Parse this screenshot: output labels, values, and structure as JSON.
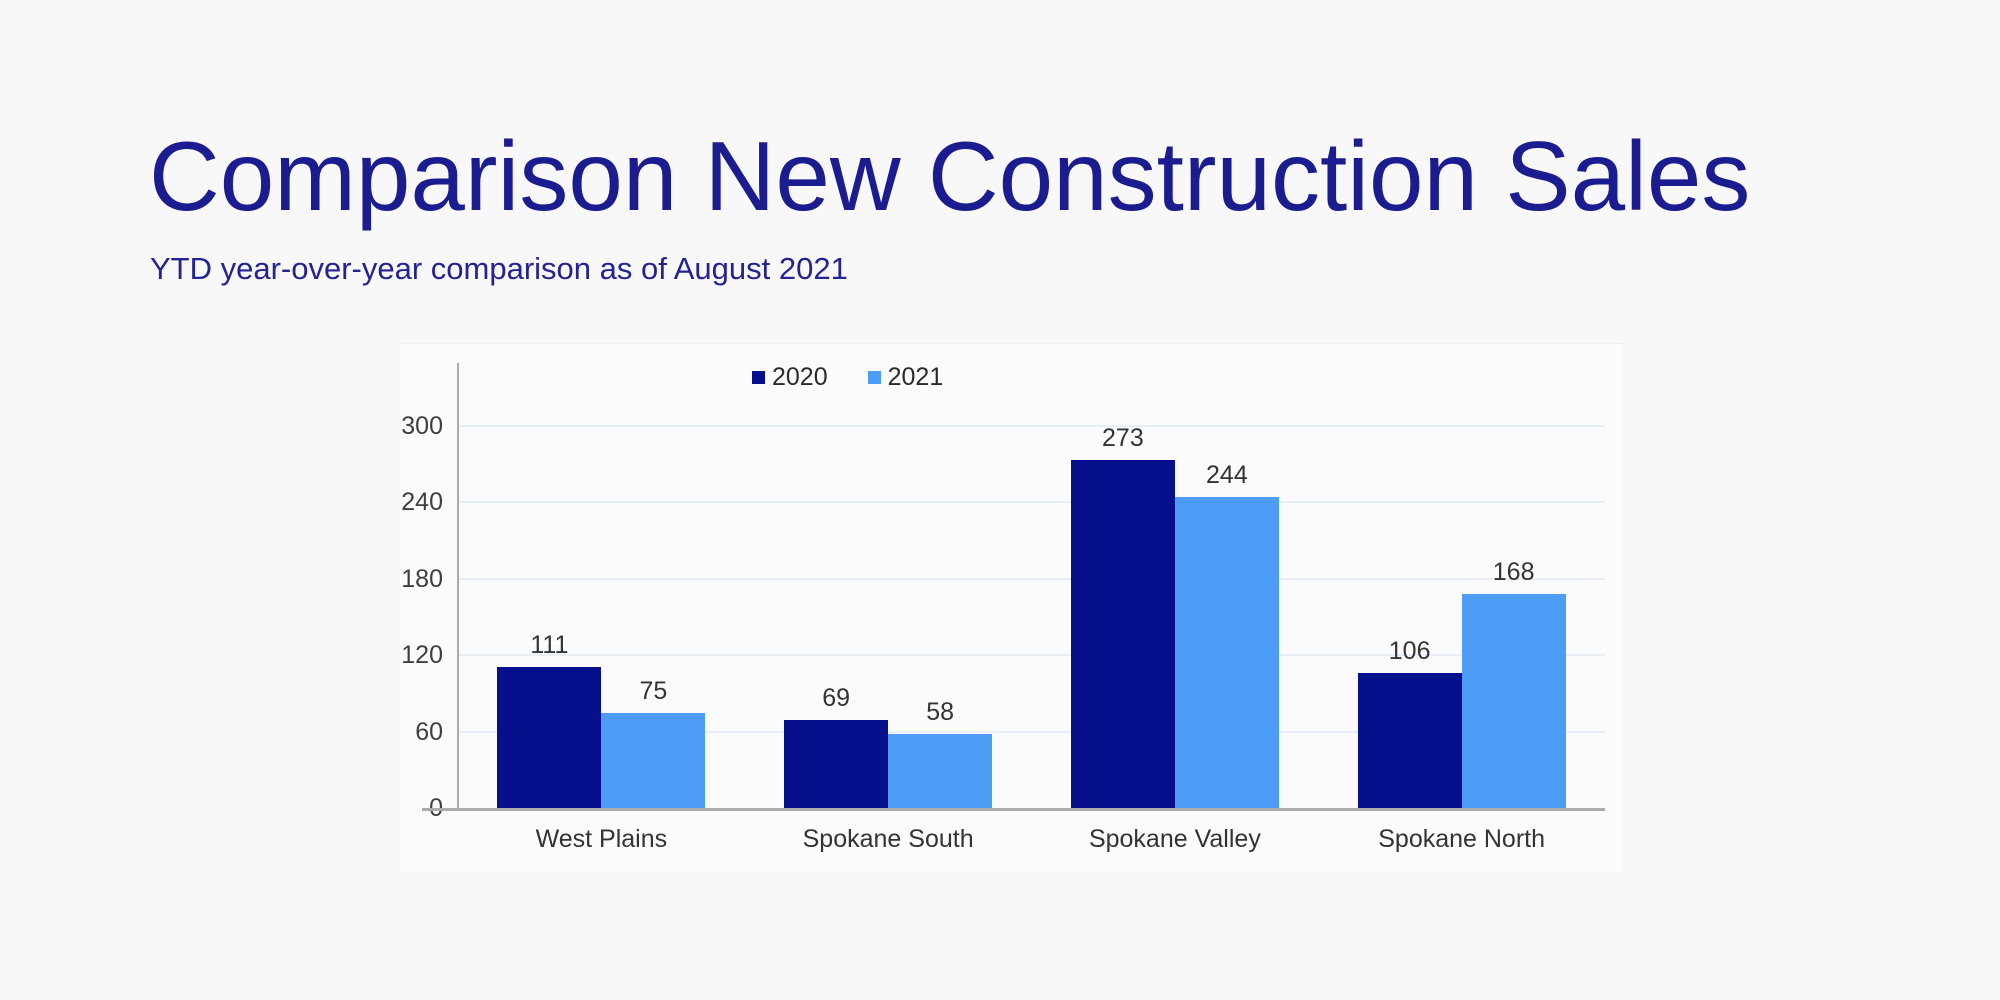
{
  "header": {
    "title": "Comparison New Construction Sales",
    "subtitle": "YTD year-over-year comparison as of August 2021"
  },
  "chart_data": {
    "type": "bar",
    "categories": [
      "West Plains",
      "Spokane South",
      "Spokane Valley",
      "Spokane North"
    ],
    "series": [
      {
        "name": "2020",
        "color": "#06108c",
        "values": [
          111,
          69,
          273,
          106
        ]
      },
      {
        "name": "2021",
        "color": "#4d9df7",
        "values": [
          75,
          58,
          244,
          168
        ]
      }
    ],
    "yticks": [
      0,
      60,
      120,
      180,
      240,
      300
    ],
    "ylim": [
      0,
      350
    ],
    "grid": true,
    "legend_position": "top",
    "value_labels": true,
    "title": "",
    "xlabel": "",
    "ylabel": ""
  },
  "colors": {
    "background": "#f7f8f7",
    "panel": "#fafbfa",
    "title_text": "#1b1c90",
    "subtitle_text": "#222394",
    "axis_line": "#a8acae",
    "gridline": "#e7eef6",
    "tick_text": "#3f3f3f",
    "value_text": "#333333",
    "category_text": "#333333",
    "legend_text": "#2b2b2b"
  }
}
